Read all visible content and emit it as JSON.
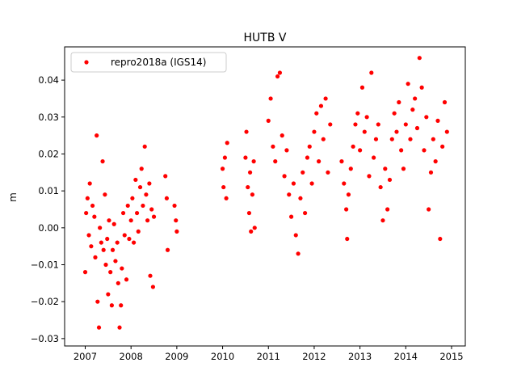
{
  "chart_data": {
    "type": "scatter",
    "title": "HUTB V",
    "xlabel": "",
    "ylabel": "m",
    "xlim": [
      2006.55,
      2015.3
    ],
    "ylim": [
      -0.032,
      0.049
    ],
    "xticks": [
      2007,
      2008,
      2009,
      2010,
      2011,
      2012,
      2013,
      2014,
      2015
    ],
    "xtick_labels": [
      "2007",
      "2008",
      "2009",
      "2010",
      "2011",
      "2012",
      "2013",
      "2014",
      "2015"
    ],
    "yticks": [
      -0.03,
      -0.02,
      -0.01,
      0.0,
      0.01,
      0.02,
      0.03,
      0.04
    ],
    "ytick_labels": [
      "−0.03",
      "−0.02",
      "−0.01",
      "0.00",
      "0.01",
      "0.02",
      "0.03",
      "0.04"
    ],
    "grid": false,
    "legend_position": "top-left",
    "marker_color": "#ff0000",
    "series": [
      {
        "name": "repro2018a (IGS14)",
        "points": [
          [
            2007.0,
            -0.012
          ],
          [
            2007.02,
            0.004
          ],
          [
            2007.05,
            0.008
          ],
          [
            2007.08,
            -0.002
          ],
          [
            2007.1,
            0.012
          ],
          [
            2007.13,
            -0.005
          ],
          [
            2007.16,
            0.006
          ],
          [
            2007.2,
            0.003
          ],
          [
            2007.22,
            -0.008
          ],
          [
            2007.25,
            0.025
          ],
          [
            2007.27,
            -0.02
          ],
          [
            2007.3,
            -0.027
          ],
          [
            2007.32,
            0.0
          ],
          [
            2007.35,
            -0.004
          ],
          [
            2007.38,
            0.018
          ],
          [
            2007.4,
            -0.006
          ],
          [
            2007.43,
            0.009
          ],
          [
            2007.45,
            -0.01
          ],
          [
            2007.48,
            -0.003
          ],
          [
            2007.5,
            -0.018
          ],
          [
            2007.52,
            0.002
          ],
          [
            2007.55,
            -0.012
          ],
          [
            2007.58,
            -0.021
          ],
          [
            2007.6,
            -0.006
          ],
          [
            2007.63,
            0.001
          ],
          [
            2007.66,
            -0.009
          ],
          [
            2007.7,
            -0.004
          ],
          [
            2007.72,
            -0.015
          ],
          [
            2007.75,
            -0.027
          ],
          [
            2007.78,
            -0.021
          ],
          [
            2007.8,
            -0.011
          ],
          [
            2007.83,
            0.004
          ],
          [
            2007.86,
            -0.002
          ],
          [
            2007.9,
            -0.014
          ],
          [
            2007.93,
            0.006
          ],
          [
            2007.96,
            -0.003
          ],
          [
            2008.0,
            0.002
          ],
          [
            2008.03,
            0.008
          ],
          [
            2008.06,
            -0.004
          ],
          [
            2008.1,
            0.013
          ],
          [
            2008.13,
            0.004
          ],
          [
            2008.16,
            -0.001
          ],
          [
            2008.2,
            0.011
          ],
          [
            2008.23,
            0.016
          ],
          [
            2008.26,
            0.006
          ],
          [
            2008.3,
            0.022
          ],
          [
            2008.33,
            0.009
          ],
          [
            2008.36,
            0.002
          ],
          [
            2008.4,
            0.012
          ],
          [
            2008.42,
            -0.013
          ],
          [
            2008.45,
            0.005
          ],
          [
            2008.48,
            -0.016
          ],
          [
            2008.5,
            0.003
          ],
          [
            2008.75,
            0.014
          ],
          [
            2008.78,
            0.008
          ],
          [
            2008.8,
            -0.006
          ],
          [
            2008.95,
            0.006
          ],
          [
            2008.98,
            0.002
          ],
          [
            2009.0,
            -0.001
          ],
          [
            2010.0,
            0.016
          ],
          [
            2010.02,
            0.011
          ],
          [
            2010.05,
            0.019
          ],
          [
            2010.08,
            0.008
          ],
          [
            2010.1,
            0.023
          ],
          [
            2010.5,
            0.019
          ],
          [
            2010.52,
            0.026
          ],
          [
            2010.55,
            0.011
          ],
          [
            2010.58,
            0.004
          ],
          [
            2010.6,
            0.015
          ],
          [
            2010.62,
            -0.001
          ],
          [
            2010.65,
            0.009
          ],
          [
            2010.68,
            0.018
          ],
          [
            2010.7,
            0.0
          ],
          [
            2011.0,
            0.029
          ],
          [
            2011.05,
            0.035
          ],
          [
            2011.1,
            0.022
          ],
          [
            2011.15,
            0.018
          ],
          [
            2011.2,
            0.041
          ],
          [
            2011.25,
            0.042
          ],
          [
            2011.3,
            0.025
          ],
          [
            2011.35,
            0.014
          ],
          [
            2011.4,
            0.021
          ],
          [
            2011.45,
            0.009
          ],
          [
            2011.5,
            0.003
          ],
          [
            2011.55,
            0.012
          ],
          [
            2011.6,
            -0.002
          ],
          [
            2011.65,
            -0.007
          ],
          [
            2011.7,
            0.008
          ],
          [
            2011.75,
            0.015
          ],
          [
            2011.8,
            0.004
          ],
          [
            2011.85,
            0.019
          ],
          [
            2011.9,
            0.022
          ],
          [
            2011.95,
            0.012
          ],
          [
            2012.0,
            0.026
          ],
          [
            2012.05,
            0.031
          ],
          [
            2012.1,
            0.018
          ],
          [
            2012.15,
            0.033
          ],
          [
            2012.2,
            0.024
          ],
          [
            2012.25,
            0.035
          ],
          [
            2012.3,
            0.015
          ],
          [
            2012.35,
            0.028
          ],
          [
            2012.6,
            0.018
          ],
          [
            2012.65,
            0.012
          ],
          [
            2012.7,
            0.005
          ],
          [
            2012.72,
            -0.003
          ],
          [
            2012.75,
            0.009
          ],
          [
            2012.8,
            0.016
          ],
          [
            2012.85,
            0.022
          ],
          [
            2012.9,
            0.028
          ],
          [
            2012.95,
            0.031
          ],
          [
            2013.0,
            0.021
          ],
          [
            2013.05,
            0.038
          ],
          [
            2013.1,
            0.026
          ],
          [
            2013.15,
            0.03
          ],
          [
            2013.2,
            0.014
          ],
          [
            2013.25,
            0.042
          ],
          [
            2013.3,
            0.019
          ],
          [
            2013.35,
            0.024
          ],
          [
            2013.4,
            0.028
          ],
          [
            2013.45,
            0.011
          ],
          [
            2013.5,
            0.002
          ],
          [
            2013.55,
            0.016
          ],
          [
            2013.6,
            0.005
          ],
          [
            2013.65,
            0.013
          ],
          [
            2013.7,
            0.024
          ],
          [
            2013.75,
            0.031
          ],
          [
            2013.8,
            0.026
          ],
          [
            2013.85,
            0.034
          ],
          [
            2013.9,
            0.021
          ],
          [
            2013.95,
            0.016
          ],
          [
            2014.0,
            0.028
          ],
          [
            2014.05,
            0.039
          ],
          [
            2014.1,
            0.024
          ],
          [
            2014.15,
            0.032
          ],
          [
            2014.2,
            0.035
          ],
          [
            2014.25,
            0.027
          ],
          [
            2014.3,
            0.046
          ],
          [
            2014.35,
            0.038
          ],
          [
            2014.4,
            0.021
          ],
          [
            2014.45,
            0.03
          ],
          [
            2014.5,
            0.005
          ],
          [
            2014.55,
            0.015
          ],
          [
            2014.6,
            0.024
          ],
          [
            2014.65,
            0.018
          ],
          [
            2014.7,
            0.029
          ],
          [
            2014.75,
            -0.003
          ],
          [
            2014.8,
            0.022
          ],
          [
            2014.85,
            0.034
          ],
          [
            2014.9,
            0.026
          ]
        ]
      }
    ]
  }
}
